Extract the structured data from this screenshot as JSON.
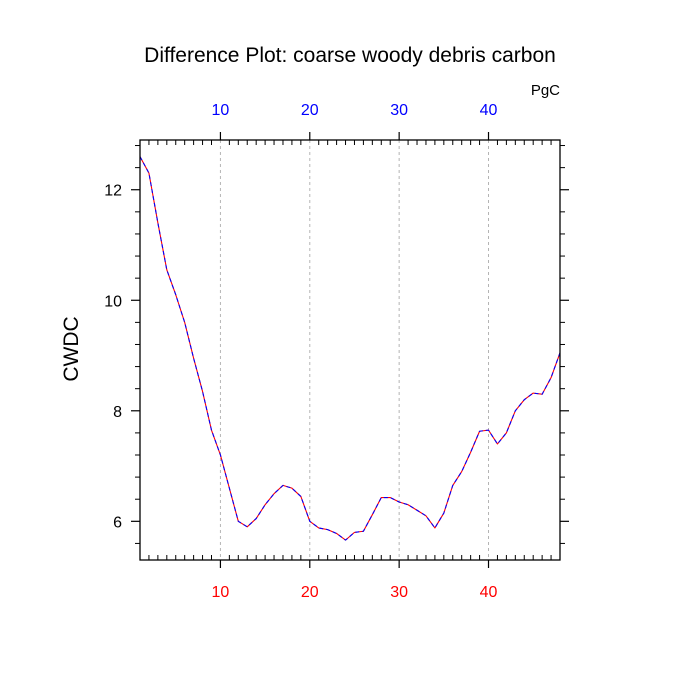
{
  "chart_data": {
    "type": "line",
    "title": "Difference Plot: coarse woody debris carbon",
    "units": "PgC",
    "ylabel": "CWDC",
    "xlabel": "",
    "xlim": [
      1,
      48
    ],
    "ylim": [
      5.3,
      12.9
    ],
    "grid": "vertical dashed at major x ticks",
    "x_ticks": [
      10,
      20,
      30,
      40
    ],
    "y_ticks": [
      6,
      8,
      10,
      12
    ],
    "x_tick_labels_bottom": [
      "10",
      "20",
      "30",
      "40"
    ],
    "x_tick_labels_top": [
      "10",
      "20",
      "30",
      "40"
    ],
    "colors": {
      "bottom_tick_labels": "#ff0000",
      "top_tick_labels": "#0000ff",
      "series_solid": "#ff0000",
      "series_dashed": "#0000ff",
      "grid": "#b4b4b4"
    },
    "series": [
      {
        "x": [
          1,
          2,
          3,
          4,
          5,
          6,
          7,
          8,
          9,
          10,
          11,
          12,
          13,
          14,
          15,
          16,
          17,
          18,
          19,
          20,
          21,
          22,
          23,
          24,
          25,
          26,
          27,
          28,
          29,
          30,
          31,
          32,
          33,
          34,
          35,
          36,
          37,
          38,
          39,
          40,
          41,
          42,
          43,
          44,
          45,
          46,
          47,
          48
        ],
        "values": [
          12.6,
          12.3,
          11.4,
          10.55,
          10.1,
          9.6,
          8.95,
          8.35,
          7.65,
          7.2,
          6.6,
          6.0,
          5.9,
          6.05,
          6.3,
          6.5,
          6.65,
          6.6,
          6.45,
          6.0,
          5.88,
          5.85,
          5.78,
          5.66,
          5.8,
          5.82,
          6.12,
          6.43,
          6.43,
          6.35,
          6.3,
          6.2,
          6.1,
          5.88,
          6.15,
          6.65,
          6.9,
          7.25,
          7.63,
          7.65,
          7.4,
          7.6,
          8.0,
          8.2,
          8.32,
          8.3,
          8.6,
          9.05
        ]
      }
    ]
  }
}
